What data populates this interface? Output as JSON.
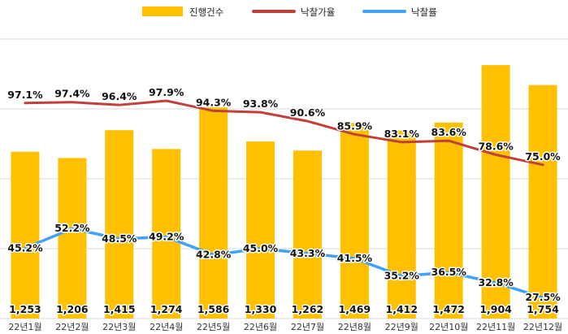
{
  "chart_data": {
    "type": "bar",
    "categories": [
      "22년1월",
      "22년2월",
      "22년3월",
      "22년4월",
      "22년5월",
      "22년6월",
      "22년7월",
      "22년8월",
      "22년9월",
      "22년10월",
      "22년11월",
      "22년12월"
    ],
    "series": [
      {
        "name": "진행건수",
        "type": "bar",
        "color": "#FFC000",
        "values": [
          1253,
          1206,
          1415,
          1274,
          1586,
          1330,
          1262,
          1469,
          1412,
          1472,
          1904,
          1754
        ],
        "labels": [
          "1,253",
          "1,206",
          "1,415",
          "1,274",
          "1,586",
          "1,330",
          "1,262",
          "1,469",
          "1,412",
          "1,472",
          "1,904",
          "1,754"
        ]
      },
      {
        "name": "낙찰가율",
        "type": "line",
        "color": "#C0403A",
        "values": [
          97.1,
          97.4,
          96.4,
          97.9,
          94.3,
          93.8,
          90.6,
          85.9,
          83.1,
          83.6,
          78.6,
          75.0
        ],
        "labels": [
          "97.1%",
          "97.4%",
          "96.4%",
          "97.9%",
          "94.3%",
          "93.8%",
          "90.6%",
          "85.9%",
          "83.1%",
          "83.6%",
          "78.6%",
          "75.0%"
        ]
      },
      {
        "name": "낙찰률",
        "type": "line",
        "color": "#3FA2F7",
        "values": [
          45.2,
          52.2,
          48.5,
          49.2,
          42.8,
          45.0,
          43.3,
          41.5,
          35.2,
          36.5,
          32.8,
          27.5
        ],
        "labels": [
          "45.2%",
          "52.2%",
          "48.5%",
          "49.2%",
          "42.8%",
          "45.0%",
          "43.3%",
          "41.5%",
          "35.2%",
          "36.5%",
          "32.8%",
          "27.5%"
        ]
      }
    ],
    "bar_axis": {
      "min": 0,
      "max": 2100
    },
    "line_axis": {
      "min": 20,
      "max": 120
    },
    "grid": true,
    "legend_position": "top-center"
  }
}
